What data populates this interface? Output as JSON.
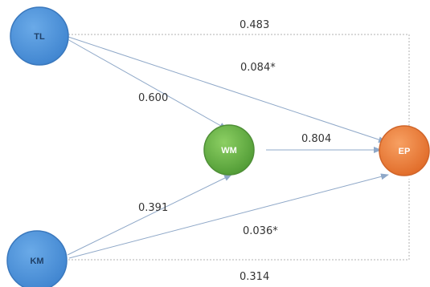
{
  "nodes": {
    "tl": {
      "label": "TL",
      "fill": "#4a90d9",
      "stroke": "#3a78bd",
      "text_color": "#1f3f66"
    },
    "km": {
      "label": "KM",
      "fill": "#4a90d9",
      "stroke": "#3a78bd",
      "text_color": "#1f3f66"
    },
    "wm": {
      "label": "WM",
      "fill": "#6ab04c",
      "stroke": "#4f8f37",
      "text_color": "#ffffff"
    },
    "ep": {
      "label": "EP",
      "fill": "#f0803c",
      "stroke": "#d0652a",
      "text_color": "#ffffff"
    }
  },
  "edges": {
    "tl_ep_total": "0.483",
    "tl_ep_direct": "0.084*",
    "tl_wm": "0.600",
    "wm_ep": "0.804",
    "km_wm": "0.391",
    "km_ep_direct": "0.036*",
    "km_ep_total": "0.314"
  },
  "colors": {
    "arrow": "#8fa8c8",
    "dotted": "#b0b0b0"
  }
}
